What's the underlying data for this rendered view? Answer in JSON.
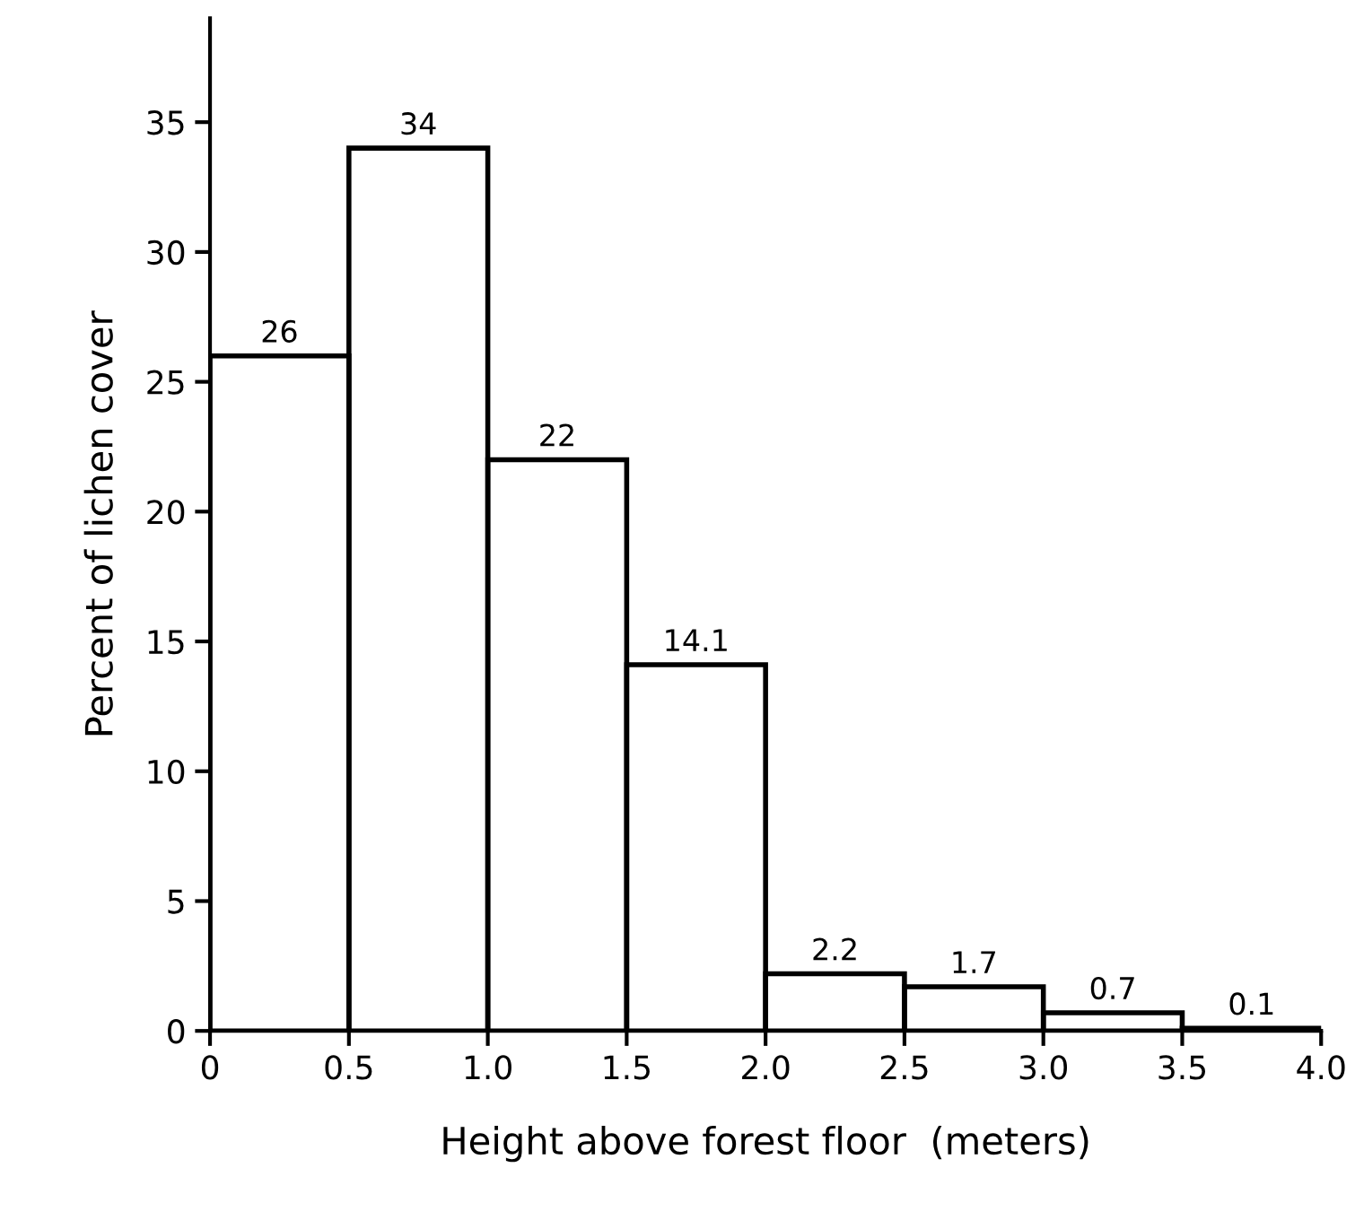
{
  "chart_data": {
    "type": "histogram",
    "xlabel": "Height above forest floor  (meters)",
    "ylabel": "Percent of lichen cover",
    "bins": [
      0,
      0.5,
      1.0,
      1.5,
      2.0,
      2.5,
      3.0,
      3.5,
      4.0
    ],
    "values": [
      26,
      34,
      22,
      14.1,
      2.2,
      1.7,
      0.7,
      0.1
    ],
    "color": "#000000",
    "data_labels": true,
    "xlim": [
      0,
      4
    ],
    "xticks": [
      0,
      0.5,
      {
        "value": 1.0,
        "label": "1.0"
      },
      1.5,
      {
        "value": 2.0,
        "label": "2.0"
      },
      2.5,
      {
        "value": 3.0,
        "label": "3.0"
      },
      3.5,
      {
        "value": 4.0,
        "label": "4.0"
      }
    ],
    "ylim": [
      0,
      39
    ],
    "yticks": [
      0,
      5,
      10,
      15,
      20,
      25,
      30,
      35
    ],
    "grid": false,
    "legend": false
  }
}
